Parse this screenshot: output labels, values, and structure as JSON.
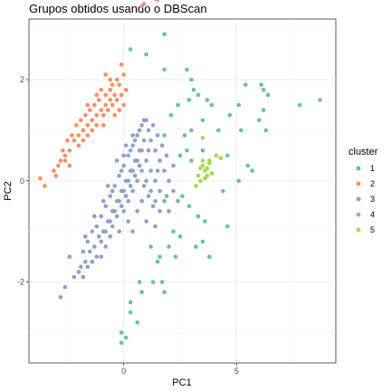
{
  "chart_data": {
    "type": "scatter",
    "title": "Grupos obtidos usando o DBScan",
    "xlabel": "PC1",
    "ylabel": "PC2",
    "xlim": [
      -4.2,
      9.4
    ],
    "ylim": [
      -3.6,
      3.2
    ],
    "x_ticks": [
      0,
      5
    ],
    "y_ticks": [
      -2,
      0,
      2
    ],
    "grid": true,
    "legend": {
      "title": "cluster",
      "position": "right"
    },
    "series": [
      {
        "name": "1",
        "color": "#66C2A5",
        "points": [
          [
            0.3,
            2.6
          ],
          [
            1.0,
            2.5
          ],
          [
            1.8,
            2.9
          ],
          [
            1.8,
            2.2
          ],
          [
            2.8,
            2.2
          ],
          [
            3.0,
            2.0
          ],
          [
            3.1,
            1.8
          ],
          [
            2.9,
            1.6
          ],
          [
            2.4,
            1.5
          ],
          [
            3.3,
            1.7
          ],
          [
            3.7,
            1.6
          ],
          [
            3.9,
            1.5
          ],
          [
            5.1,
            1.5
          ],
          [
            5.4,
            1.9
          ],
          [
            4.7,
            1.3
          ],
          [
            5.2,
            1.0
          ],
          [
            6.1,
            1.9
          ],
          [
            6.2,
            1.8
          ],
          [
            6.4,
            1.7
          ],
          [
            6.2,
            1.4
          ],
          [
            6.0,
            1.2
          ],
          [
            6.3,
            1.0
          ],
          [
            7.8,
            1.5
          ],
          [
            8.7,
            1.6
          ],
          [
            3.5,
            1.2
          ],
          [
            3.0,
            1.0
          ],
          [
            2.7,
            0.9
          ],
          [
            2.1,
            1.3
          ],
          [
            1.8,
            0.9
          ],
          [
            2.8,
            0.6
          ],
          [
            3.0,
            0.4
          ],
          [
            3.5,
            0.6
          ],
          [
            2.5,
            0.5
          ],
          [
            4.2,
            1.0
          ],
          [
            4.6,
            0.5
          ],
          [
            5.5,
            0.3
          ],
          [
            5.7,
            0.2
          ],
          [
            5.1,
            0.0
          ],
          [
            4.4,
            -0.2
          ],
          [
            2.6,
            -0.3
          ],
          [
            2.9,
            -0.5
          ],
          [
            3.3,
            -0.7
          ],
          [
            3.6,
            -0.8
          ],
          [
            4.6,
            -0.9
          ],
          [
            2.2,
            -1.0
          ],
          [
            2.5,
            -1.1
          ],
          [
            2.0,
            -1.3
          ],
          [
            1.6,
            -1.5
          ],
          [
            1.5,
            -1.6
          ],
          [
            2.3,
            -1.5
          ],
          [
            3.2,
            -1.3
          ],
          [
            3.5,
            -1.2
          ],
          [
            3.8,
            -1.5
          ],
          [
            1.3,
            -2.0
          ],
          [
            1.7,
            -2.0
          ],
          [
            1.8,
            -2.2
          ],
          [
            0.7,
            -2.0
          ],
          [
            0.8,
            -2.2
          ],
          [
            0.3,
            -2.4
          ],
          [
            0.3,
            -2.6
          ],
          [
            0.6,
            -2.8
          ],
          [
            -0.1,
            -3.0
          ],
          [
            0.1,
            -3.1
          ],
          [
            -0.1,
            -3.2
          ],
          [
            1.2,
            -1.3
          ],
          [
            1.9,
            -0.3
          ]
        ]
      },
      {
        "name": "2",
        "color": "#FC8D62",
        "points": [
          [
            -3.5,
            -0.1
          ],
          [
            -3.0,
            0.1
          ],
          [
            -2.8,
            0.4
          ],
          [
            -2.6,
            0.5
          ],
          [
            -2.4,
            0.6
          ],
          [
            -2.2,
            0.8
          ],
          [
            -2.0,
            0.9
          ],
          [
            -1.8,
            1.0
          ],
          [
            -1.6,
            1.1
          ],
          [
            -1.4,
            1.2
          ],
          [
            -1.2,
            1.3
          ],
          [
            -1.0,
            1.4
          ],
          [
            -0.8,
            1.5
          ],
          [
            -0.6,
            1.6
          ],
          [
            -0.4,
            1.7
          ],
          [
            -0.2,
            1.9
          ],
          [
            0.0,
            2.1
          ],
          [
            -0.3,
            2.0
          ],
          [
            -0.1,
            2.3
          ],
          [
            -0.5,
            1.9
          ],
          [
            -1.1,
            1.6
          ],
          [
            -1.3,
            1.5
          ],
          [
            -1.5,
            1.4
          ],
          [
            -1.7,
            1.3
          ],
          [
            -1.9,
            1.2
          ],
          [
            -2.1,
            1.1
          ],
          [
            -2.3,
            0.9
          ],
          [
            -2.5,
            0.8
          ],
          [
            -2.7,
            0.6
          ],
          [
            -2.9,
            0.3
          ],
          [
            -3.1,
            0.2
          ],
          [
            -0.9,
            1.3
          ],
          [
            -0.7,
            1.4
          ],
          [
            -0.5,
            1.5
          ],
          [
            -0.3,
            1.6
          ],
          [
            -0.1,
            1.7
          ],
          [
            0.1,
            1.8
          ],
          [
            -0.6,
            1.8
          ],
          [
            -0.8,
            1.7
          ],
          [
            -1.0,
            1.8
          ],
          [
            -2.4,
            0.3
          ],
          [
            -2.6,
            0.4
          ],
          [
            -2.0,
            0.7
          ],
          [
            -1.8,
            0.8
          ],
          [
            -1.6,
            0.9
          ],
          [
            -1.4,
            1.0
          ],
          [
            -1.2,
            1.1
          ],
          [
            -0.4,
            1.3
          ],
          [
            -0.2,
            1.4
          ],
          [
            0.0,
            1.5
          ],
          [
            -0.8,
            2.1
          ],
          [
            -0.6,
            2.0
          ],
          [
            -1.2,
            1.7
          ],
          [
            -1.6,
            1.5
          ],
          [
            -3.7,
            0.05
          ],
          [
            -0.9,
            1.1
          ]
        ]
      },
      {
        "name": "3",
        "color": "#8DA0CB",
        "points": [
          [
            -2.6,
            -2.1
          ],
          [
            -2.2,
            -1.9
          ],
          [
            -2.0,
            -1.8
          ],
          [
            -1.7,
            -1.6
          ],
          [
            -1.5,
            -1.4
          ],
          [
            -1.3,
            -1.3
          ],
          [
            -1.1,
            -1.1
          ],
          [
            -0.9,
            -1.0
          ],
          [
            -0.7,
            -0.8
          ],
          [
            -0.5,
            -0.6
          ],
          [
            -0.3,
            -0.4
          ],
          [
            -0.1,
            -0.2
          ],
          [
            0.1,
            0.0
          ],
          [
            0.3,
            0.2
          ],
          [
            0.5,
            0.4
          ],
          [
            0.7,
            0.6
          ],
          [
            0.9,
            0.8
          ],
          [
            1.1,
            1.0
          ],
          [
            -1.8,
            -1.4
          ],
          [
            -1.6,
            -1.2
          ],
          [
            -1.4,
            -1.0
          ],
          [
            -1.2,
            -0.9
          ],
          [
            -1.0,
            -0.7
          ],
          [
            -0.8,
            -0.5
          ],
          [
            -0.6,
            -0.3
          ],
          [
            -0.4,
            -0.1
          ],
          [
            -0.2,
            0.1
          ],
          [
            0.0,
            0.3
          ],
          [
            0.2,
            0.5
          ],
          [
            0.4,
            0.7
          ],
          [
            0.6,
            0.9
          ],
          [
            0.8,
            1.1
          ],
          [
            1.0,
            1.2
          ],
          [
            1.2,
            0.8
          ],
          [
            1.4,
            0.6
          ],
          [
            1.6,
            0.4
          ],
          [
            1.8,
            0.2
          ],
          [
            2.0,
            0.0
          ],
          [
            2.2,
            -0.2
          ],
          [
            2.4,
            -0.4
          ],
          [
            -1.0,
            -1.2
          ],
          [
            -0.8,
            -1.0
          ],
          [
            -0.6,
            -0.8
          ],
          [
            -0.4,
            -0.6
          ],
          [
            -0.2,
            -0.4
          ],
          [
            0.0,
            -0.2
          ],
          [
            0.2,
            0.0
          ],
          [
            0.4,
            0.2
          ],
          [
            0.6,
            0.4
          ],
          [
            0.8,
            0.6
          ],
          [
            1.0,
            0.4
          ],
          [
            1.2,
            0.2
          ],
          [
            1.4,
            0.0
          ],
          [
            1.6,
            -0.2
          ],
          [
            1.8,
            -0.4
          ],
          [
            2.0,
            -0.6
          ],
          [
            0.0,
            -0.6
          ],
          [
            0.2,
            -0.4
          ],
          [
            0.4,
            -0.2
          ],
          [
            0.6,
            0.0
          ],
          [
            0.8,
            0.2
          ],
          [
            1.0,
            0.0
          ],
          [
            1.2,
            -0.2
          ],
          [
            1.4,
            -0.4
          ],
          [
            1.6,
            -0.6
          ],
          [
            -0.5,
            -0.9
          ],
          [
            -0.3,
            -0.7
          ],
          [
            -0.1,
            -0.5
          ],
          [
            0.1,
            -0.3
          ],
          [
            0.3,
            -0.1
          ],
          [
            0.5,
            0.1
          ],
          [
            0.7,
            0.3
          ],
          [
            0.9,
            -0.1
          ],
          [
            1.1,
            -0.3
          ],
          [
            1.3,
            -0.5
          ],
          [
            -1.4,
            -1.6
          ],
          [
            -1.2,
            -1.5
          ],
          [
            -1.6,
            -1.7
          ],
          [
            -1.8,
            -1.9
          ],
          [
            -0.8,
            -1.3
          ],
          [
            -0.6,
            -1.1
          ],
          [
            -1.7,
            -1.1
          ],
          [
            -1.3,
            -0.7
          ],
          [
            -0.9,
            -0.4
          ],
          [
            -0.5,
            -0.2
          ],
          [
            -0.1,
            0.2
          ],
          [
            0.3,
            0.6
          ],
          [
            0.5,
            0.8
          ],
          [
            0.7,
            1.0
          ],
          [
            -0.3,
            0.4
          ],
          [
            0.1,
            0.7
          ],
          [
            0.9,
            1.2
          ],
          [
            1.3,
            1.1
          ],
          [
            1.5,
            0.9
          ],
          [
            1.7,
            0.7
          ],
          [
            1.9,
            0.5
          ],
          [
            -2.4,
            -1.5
          ],
          [
            -1.9,
            -1.7
          ],
          [
            0.2,
            -0.8
          ],
          [
            0.6,
            -0.6
          ],
          [
            1.0,
            -0.8
          ],
          [
            1.4,
            -0.9
          ],
          [
            -0.2,
            -1.0
          ],
          [
            0.4,
            -1.0
          ],
          [
            -2.8,
            -2.3
          ],
          [
            -1.0,
            -1.5
          ],
          [
            0.8,
            -0.4
          ],
          [
            -0.7,
            -0.1
          ],
          [
            0.0,
            0.5
          ],
          [
            0.4,
            0.9
          ],
          [
            1.1,
            0.6
          ],
          [
            1.5,
            0.2
          ],
          [
            2.2,
            0.3
          ]
        ]
      },
      {
        "name": "4",
        "color": "#E78AC3",
        "points": [
          [
            0.8,
            3.45
          ],
          [
            0.9,
            3.5
          ],
          [
            1.4,
            3.6
          ],
          [
            1.5,
            3.58
          ]
        ]
      },
      {
        "name": "5",
        "color": "#A6D854",
        "points": [
          [
            3.5,
            0.3
          ],
          [
            3.6,
            0.2
          ],
          [
            3.7,
            0.25
          ],
          [
            3.8,
            0.35
          ],
          [
            3.3,
            0.1
          ],
          [
            3.4,
            0.0
          ],
          [
            3.6,
            0.05
          ],
          [
            3.2,
            -0.1
          ],
          [
            3.5,
            0.4
          ],
          [
            4.1,
            0.5
          ],
          [
            4.3,
            0.45
          ],
          [
            3.9,
            0.15
          ],
          [
            3.4,
            0.25
          ],
          [
            3.7,
            0.1
          ],
          [
            3.5,
            0.85
          ],
          [
            3.8,
            0.4
          ]
        ]
      }
    ]
  }
}
